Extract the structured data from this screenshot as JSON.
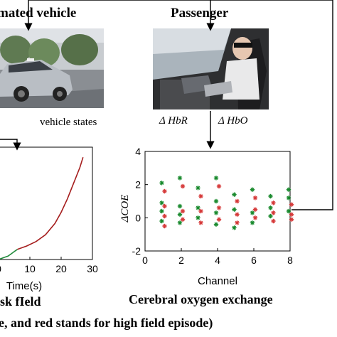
{
  "headings": {
    "vehicle": "mated vehicle",
    "passenger": "Passenger",
    "risk_field": "sk fIeld",
    "coe": "Cerebral oxygen exchange",
    "caption": "e, and red stands for high field episode)"
  },
  "labels": {
    "vehicle_states": "vehicle states",
    "hbr": "Δ HbR",
    "hbo": "Δ HbO"
  },
  "chart_data": [
    {
      "type": "line",
      "xlabel": "Time(s)",
      "ylabel": "",
      "x_ticks": [
        0,
        10,
        20,
        30
      ],
      "x_tick_labels": [
        "0",
        "10",
        "20",
        "30"
      ],
      "xlim": [
        0,
        30
      ],
      "ylim": [
        0,
        1
      ],
      "series": [
        {
          "color": "green",
          "points": [
            [
              0,
              0.0
            ],
            [
              1,
              0.01
            ],
            [
              2,
              0.02
            ],
            [
              3,
              0.03
            ],
            [
              4,
              0.05
            ],
            [
              5,
              0.07
            ],
            [
              6,
              0.09
            ]
          ]
        },
        {
          "color": "red",
          "points": [
            [
              6,
              0.09
            ],
            [
              9,
              0.12
            ],
            [
              12,
              0.16
            ],
            [
              15,
              0.22
            ],
            [
              18,
              0.32
            ],
            [
              20,
              0.42
            ],
            [
              22,
              0.54
            ],
            [
              24,
              0.68
            ],
            [
              26,
              0.82
            ],
            [
              27,
              0.91
            ]
          ]
        }
      ]
    },
    {
      "type": "scatter",
      "title": "",
      "xlabel": "Channel",
      "ylabel": "ΔCOE",
      "xlim": [
        0,
        8
      ],
      "ylim": [
        -2,
        4
      ],
      "x_ticks": [
        0,
        2,
        4,
        6,
        8
      ],
      "y_ticks": [
        -2,
        0,
        2,
        4
      ],
      "series": [
        {
          "color": "green",
          "points": [
            [
              1,
              2.1
            ],
            [
              1,
              0.9
            ],
            [
              1,
              0.4
            ],
            [
              1,
              -0.2
            ],
            [
              2,
              2.4
            ],
            [
              2,
              0.7
            ],
            [
              2,
              0.2
            ],
            [
              2,
              -0.3
            ],
            [
              3,
              1.8
            ],
            [
              3,
              0.6
            ],
            [
              3,
              0.0
            ],
            [
              4,
              2.4
            ],
            [
              4,
              1.0
            ],
            [
              4,
              0.3
            ],
            [
              4,
              -0.4
            ],
            [
              5,
              1.4
            ],
            [
              5,
              0.5
            ],
            [
              5,
              -0.6
            ],
            [
              6,
              1.7
            ],
            [
              6,
              0.3
            ],
            [
              6,
              -0.3
            ],
            [
              7,
              1.3
            ],
            [
              7,
              0.6
            ],
            [
              7,
              0.1
            ],
            [
              8,
              1.7
            ],
            [
              8,
              1.2
            ],
            [
              8,
              0.4
            ]
          ]
        },
        {
          "color": "red",
          "points": [
            [
              1,
              1.6
            ],
            [
              1,
              0.7
            ],
            [
              1,
              0.1
            ],
            [
              1,
              -0.5
            ],
            [
              2,
              1.9
            ],
            [
              2,
              0.4
            ],
            [
              2,
              -0.1
            ],
            [
              3,
              1.3
            ],
            [
              3,
              0.4
            ],
            [
              3,
              -0.3
            ],
            [
              4,
              1.9
            ],
            [
              4,
              0.6
            ],
            [
              4,
              -0.1
            ],
            [
              5,
              1.0
            ],
            [
              5,
              0.2
            ],
            [
              5,
              -0.3
            ],
            [
              6,
              1.2
            ],
            [
              6,
              0.5
            ],
            [
              6,
              0.0
            ],
            [
              7,
              0.9
            ],
            [
              7,
              0.3
            ],
            [
              7,
              -0.2
            ],
            [
              8,
              0.8
            ],
            [
              8,
              0.2
            ],
            [
              8,
              -0.1
            ]
          ]
        }
      ]
    }
  ],
  "colors": {
    "green_marker": "#1a8a2e",
    "red_marker": "#d63a3a",
    "red_line": "#a51d1d",
    "green_line": "#1f8a3a"
  }
}
